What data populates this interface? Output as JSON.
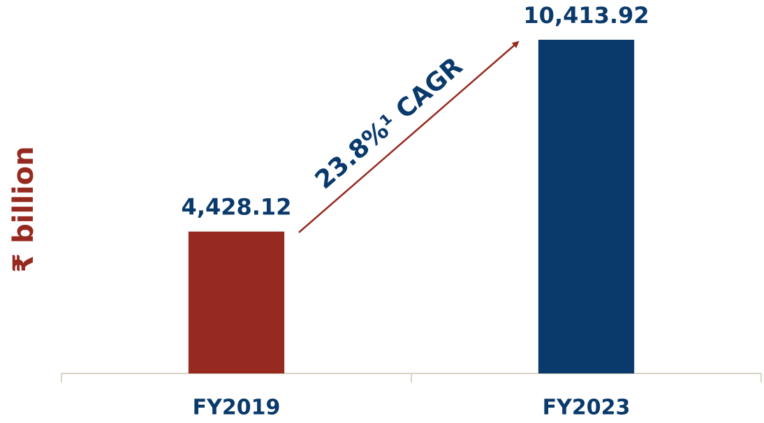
{
  "chart_data": {
    "type": "bar",
    "y_label": "₹ billion",
    "annotation": "23.8%¹ CAGR",
    "categories": [
      "FY2019",
      "FY2023"
    ],
    "values": [
      4428.12,
      10413.92
    ],
    "value_labels": [
      "4,428.12",
      "10,413.92"
    ],
    "colors": [
      "#962a20",
      "#0a3a6b"
    ],
    "ylim": [
      0,
      10500
    ]
  }
}
